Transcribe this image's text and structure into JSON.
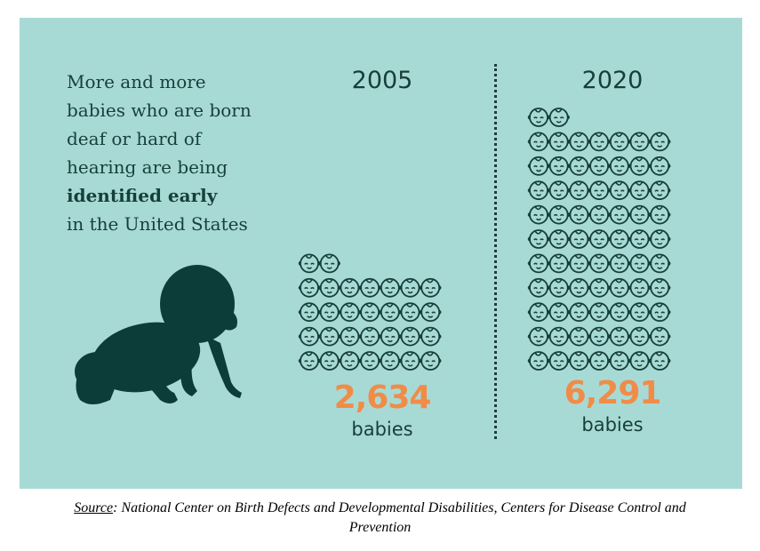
{
  "headline": {
    "line1": "More and more",
    "line2": "babies who are born",
    "line3": "deaf or hard of",
    "line4": "hearing are being",
    "emphasis": "identified early",
    "line6": "in the United States"
  },
  "source": {
    "label": "Source",
    "text": ": National Center on Birth Defects and Developmental Disabilities, Centers for Disease Control and Prevention"
  },
  "colors": {
    "background": "#a8dad5",
    "text": "#173f3a",
    "accent": "#f08c48"
  },
  "icons": {
    "unit_icon": "baby-face-icon",
    "illustration": "crawling-baby-silhouette"
  },
  "chart_data": {
    "type": "pictograph",
    "categories": [
      "2005",
      "2020"
    ],
    "values": [
      2634,
      6291
    ],
    "value_labels": [
      "2,634",
      "6,291"
    ],
    "unit": "babies",
    "icon_counts": [
      30,
      72
    ]
  }
}
